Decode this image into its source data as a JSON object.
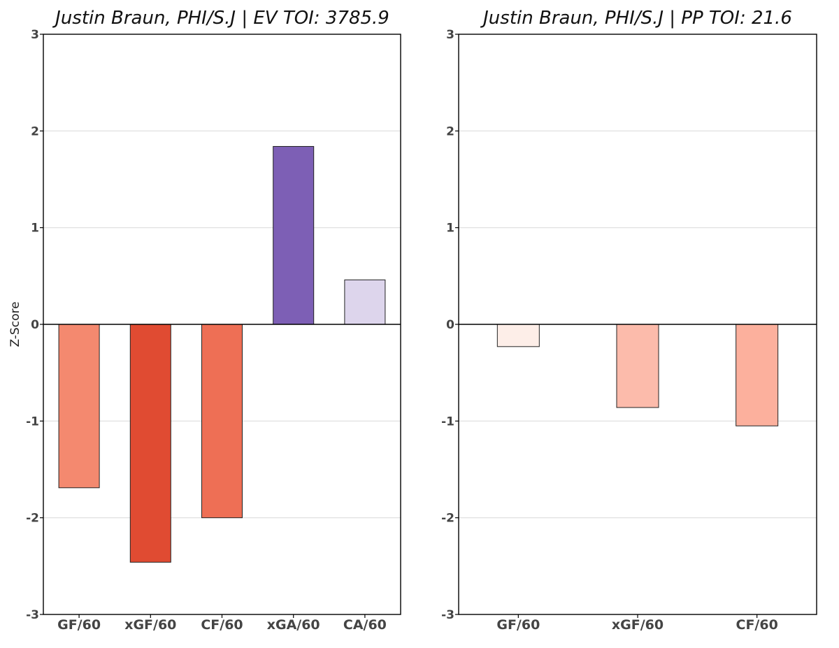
{
  "chart_data": [
    {
      "type": "bar",
      "title": "Justin Braun, PHI/S.J  |  EV TOI: 3785.9",
      "ylabel": "Z-Score",
      "xlabel": "",
      "ylim": [
        -3,
        3
      ],
      "yticks": [
        "-3",
        "-2",
        "-1",
        "0",
        "1",
        "2",
        "3"
      ],
      "grid": "horizontal",
      "categories": [
        "GF/60",
        "xGF/60",
        "CF/60",
        "xGA/60",
        "CA/60"
      ],
      "values": [
        -1.69,
        -2.46,
        -2.0,
        1.84,
        0.46
      ],
      "colors": [
        "#f4896f",
        "#e04b32",
        "#ee6f55",
        "#7d5fb5",
        "#ddd5ec"
      ]
    },
    {
      "type": "bar",
      "title": "Justin Braun, PHI/S.J  |  PP TOI: 21.6",
      "ylabel": "",
      "xlabel": "",
      "ylim": [
        -3,
        3
      ],
      "yticks": [
        "-3",
        "-2",
        "-1",
        "0",
        "1",
        "2",
        "3"
      ],
      "grid": "horizontal",
      "categories": [
        "GF/60",
        "xGF/60",
        "CF/60"
      ],
      "values": [
        -0.23,
        -0.86,
        -1.05
      ],
      "colors": [
        "#fdeee8",
        "#fcbbab",
        "#fcb09d"
      ]
    }
  ]
}
